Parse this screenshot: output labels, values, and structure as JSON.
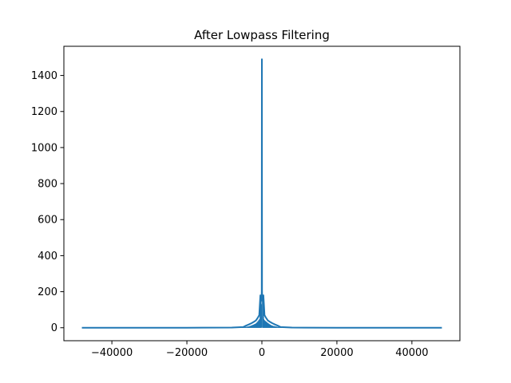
{
  "chart_data": {
    "type": "line",
    "title": "After Lowpass Filtering",
    "xlabel": "",
    "ylabel": "",
    "xlim": [
      -52800,
      52800
    ],
    "ylim": [
      -72,
      1562
    ],
    "x_ticks": [
      -40000,
      -20000,
      0,
      20000,
      40000
    ],
    "x_tick_labels": [
      "−40000",
      "−20000",
      "0",
      "20000",
      "40000"
    ],
    "y_ticks": [
      0,
      200,
      400,
      600,
      800,
      1000,
      1200,
      1400
    ],
    "y_tick_labels": [
      "0",
      "200",
      "400",
      "600",
      "800",
      "1000",
      "1200",
      "1400"
    ],
    "grid": false,
    "line_color": "#1f77b4",
    "series": [
      {
        "x": [
          -48000,
          -20000,
          -8000,
          -5000,
          -4200,
          -3500,
          -2800,
          -2200,
          -1600,
          -1100,
          -700,
          -400,
          -250,
          -120,
          -40,
          0,
          40,
          120,
          250,
          400,
          700,
          1100,
          1600,
          2200,
          2800,
          3500,
          4200,
          5000,
          8000,
          20000,
          48000
        ],
        "y": [
          0,
          0,
          1,
          4,
          12,
          18,
          25,
          32,
          40,
          55,
          70,
          180,
          170,
          150,
          200,
          1490,
          200,
          150,
          170,
          180,
          70,
          55,
          40,
          32,
          25,
          18,
          12,
          4,
          1,
          0,
          0
        ]
      }
    ]
  }
}
